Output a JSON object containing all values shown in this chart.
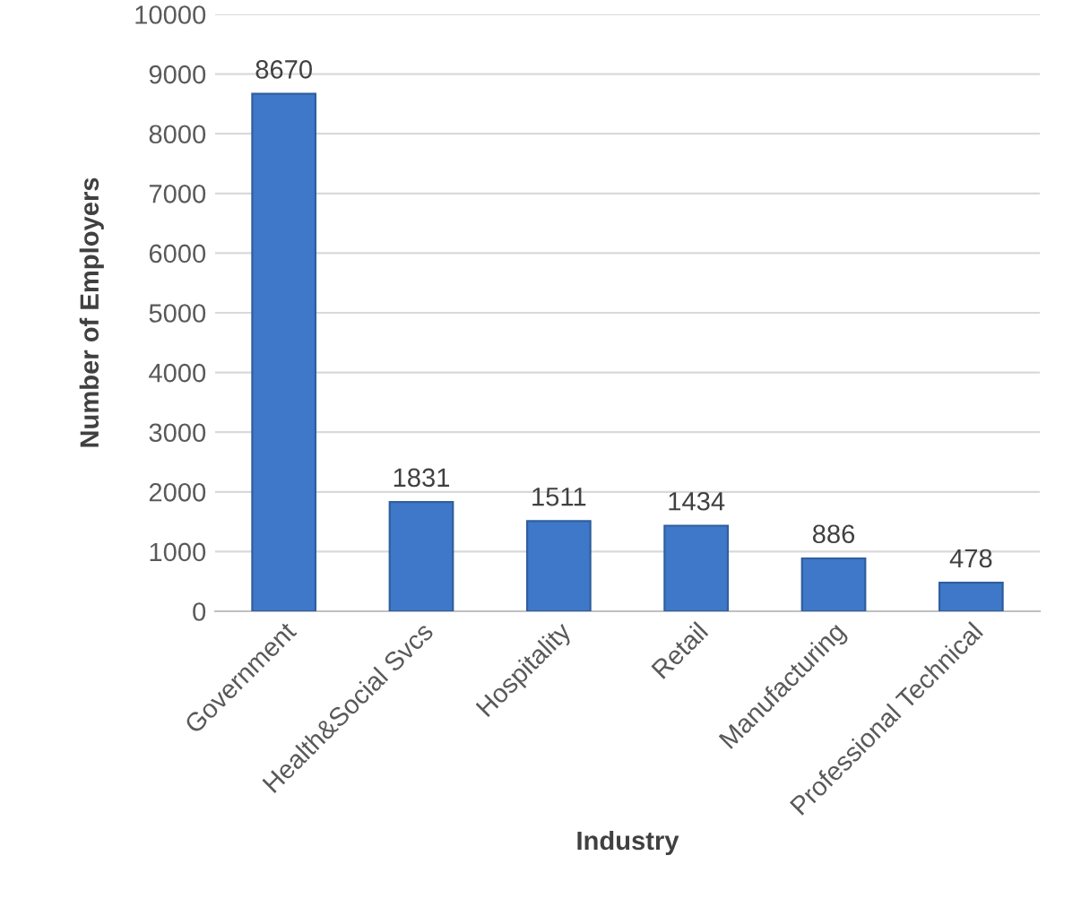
{
  "chart_data": {
    "type": "bar",
    "xlabel": "Industry",
    "ylabel": "Number of Employers",
    "categories": [
      "Government",
      "Health&Social Svcs",
      "Hospitality",
      "Retail",
      "Manufacturing",
      "Professional Technical"
    ],
    "values": [
      8670,
      1831,
      1511,
      1434,
      886,
      478
    ],
    "color": "#3f78c8",
    "ylim": [
      0,
      10000
    ],
    "yticks": [
      0,
      1000,
      2000,
      3000,
      4000,
      5000,
      6000,
      7000,
      8000,
      9000,
      10000
    ],
    "grid": "y",
    "data_labels": true
  }
}
